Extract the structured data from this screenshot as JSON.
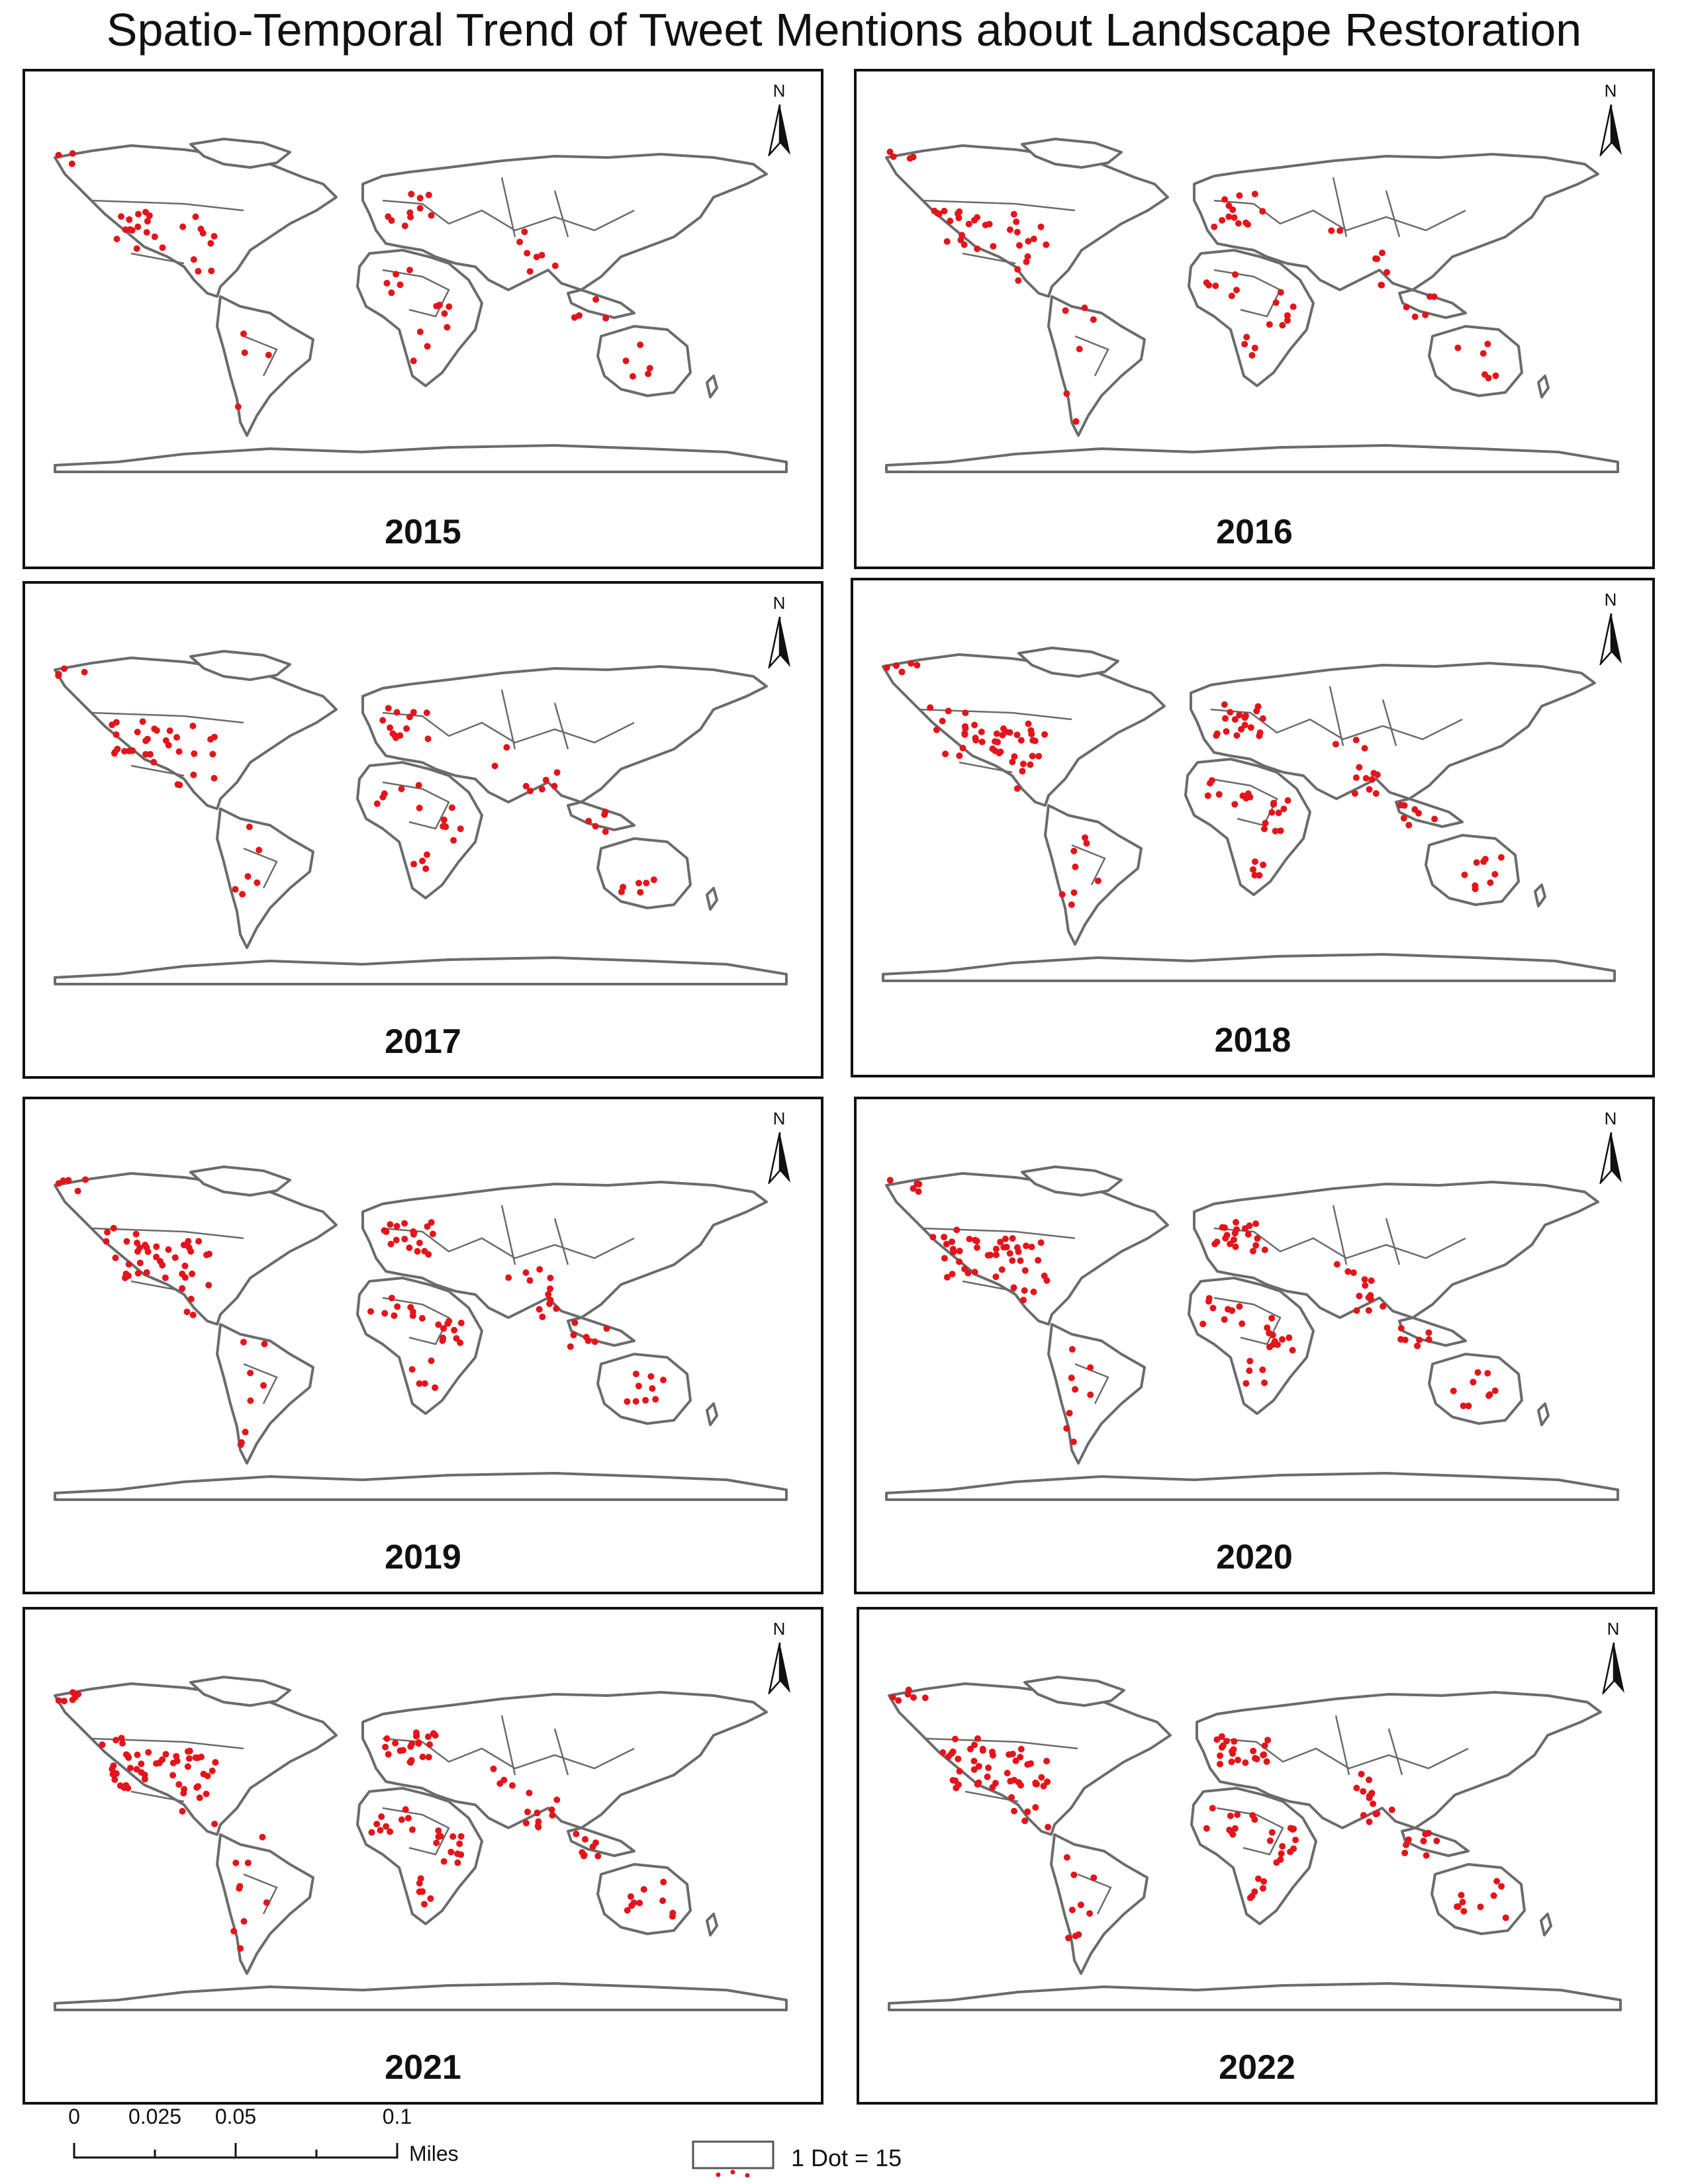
{
  "title": "Spatio-Temporal Trend of Tweet Mentions about Landscape Restoration",
  "north_label": "N",
  "panels": [
    {
      "year": "2015",
      "density": 0.45
    },
    {
      "year": "2016",
      "density": 0.6
    },
    {
      "year": "2017",
      "density": 0.6
    },
    {
      "year": "2018",
      "density": 0.85
    },
    {
      "year": "2019",
      "density": 0.85
    },
    {
      "year": "2020",
      "density": 0.9
    },
    {
      "year": "2021",
      "density": 1.0
    },
    {
      "year": "2022",
      "density": 1.0
    }
  ],
  "scale_bar": {
    "ticks": [
      "0",
      "0.025",
      "0.05",
      "0.1"
    ],
    "unit": "Miles"
  },
  "legend": {
    "label": "1 Dot = 15"
  },
  "colors": {
    "land_outline": "#6b6b6b",
    "dot": "#e3141a",
    "frame": "#111111"
  }
}
